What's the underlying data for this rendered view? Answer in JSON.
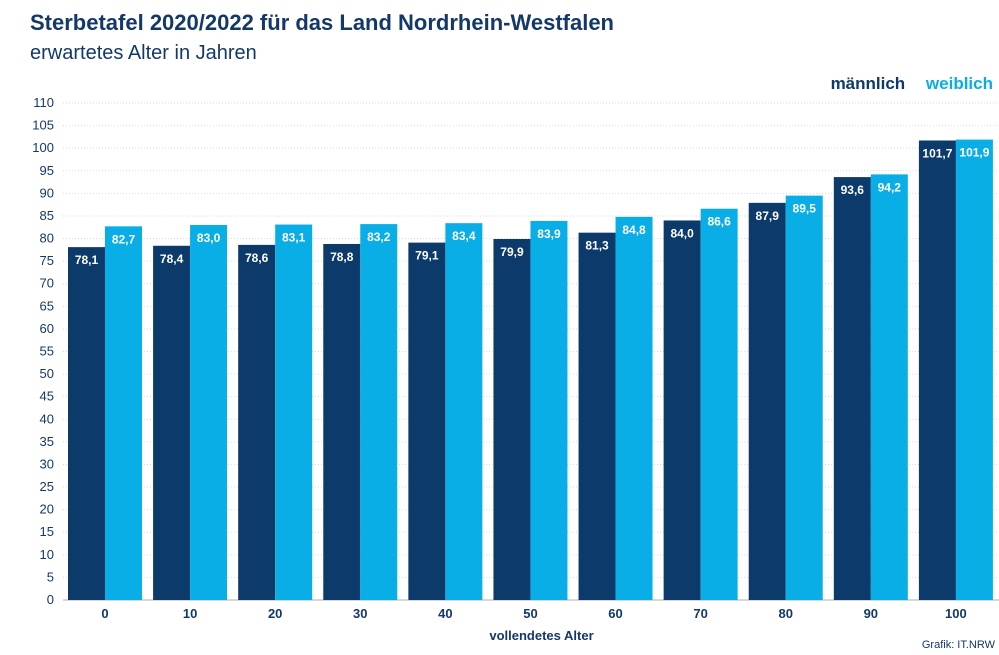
{
  "header": {
    "title": "Sterbetafel 2020/2022 für das Land Nordrhein-Westfalen",
    "subtitle": "erwartetes Alter in Jahren"
  },
  "legend": {
    "male": "männlich",
    "female": "weiblich"
  },
  "source": "Grafik: IT.NRW",
  "colors": {
    "male": "#0c3a6b",
    "female": "#0aaee6",
    "grid": "#d9d9d9",
    "text": "#14386a"
  },
  "chart_data": {
    "type": "bar",
    "title": "Sterbetafel 2020/2022 für das Land Nordrhein-Westfalen",
    "subtitle": "erwartetes Alter in Jahren",
    "xlabel": "vollendetes Alter",
    "ylabel": "",
    "ylim": [
      0,
      110
    ],
    "yticks": [
      0,
      5,
      10,
      15,
      20,
      25,
      30,
      35,
      40,
      45,
      50,
      55,
      60,
      65,
      70,
      75,
      80,
      85,
      90,
      95,
      100,
      105,
      110
    ],
    "grid": true,
    "legend_position": "top-right",
    "categories": [
      "0",
      "10",
      "20",
      "30",
      "40",
      "50",
      "60",
      "70",
      "80",
      "90",
      "100"
    ],
    "series": [
      {
        "name": "männlich",
        "values": [
          78.1,
          78.4,
          78.6,
          78.8,
          79.1,
          79.9,
          81.3,
          84.0,
          87.9,
          93.6,
          101.7
        ],
        "labels": [
          "78,1",
          "78,4",
          "78,6",
          "78,8",
          "79,1",
          "79,9",
          "81,3",
          "84,0",
          "87,9",
          "93,6",
          "101,7"
        ]
      },
      {
        "name": "weiblich",
        "values": [
          82.7,
          83.0,
          83.1,
          83.2,
          83.4,
          83.9,
          84.8,
          86.6,
          89.5,
          94.2,
          101.9
        ],
        "labels": [
          "82,7",
          "83,0",
          "83,1",
          "83,2",
          "83,4",
          "83,9",
          "84,8",
          "86,6",
          "89,5",
          "94,2",
          "101,9"
        ]
      }
    ]
  }
}
